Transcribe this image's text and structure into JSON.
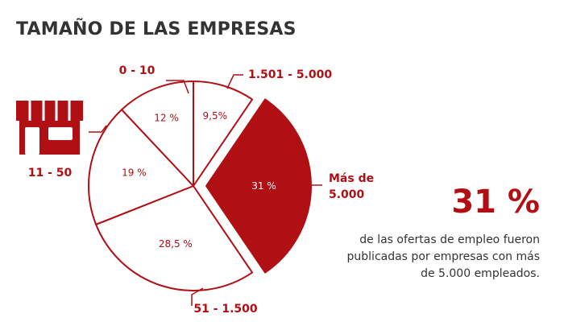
{
  "title": "TAMAÑO DE LAS EMPRESAS",
  "colors": {
    "accent": "#b00f14",
    "text": "#333333",
    "background": "#ffffff"
  },
  "icon": "store-icon",
  "chart_data": {
    "type": "pie",
    "title": "TAMAÑO DE LAS EMPRESAS",
    "slices": [
      {
        "label": "1.501 - 5.000",
        "value": 9.5,
        "value_label": "9,5%",
        "highlight": false
      },
      {
        "label": "Más de 5.000",
        "value": 31,
        "value_label": "31 %",
        "highlight": true
      },
      {
        "label": "51 - 1.500",
        "value": 28.5,
        "value_label": "28,5 %",
        "highlight": false
      },
      {
        "label": "11 - 50",
        "value": 19,
        "value_label": "19 %",
        "highlight": false
      },
      {
        "label": "0 - 10",
        "value": 12,
        "value_label": "12 %",
        "highlight": false
      }
    ]
  },
  "highlight_stat": {
    "value": "31 %",
    "description": "de las ofertas de empleo fueron publicadas por empresas con más de 5.000 empleados."
  }
}
